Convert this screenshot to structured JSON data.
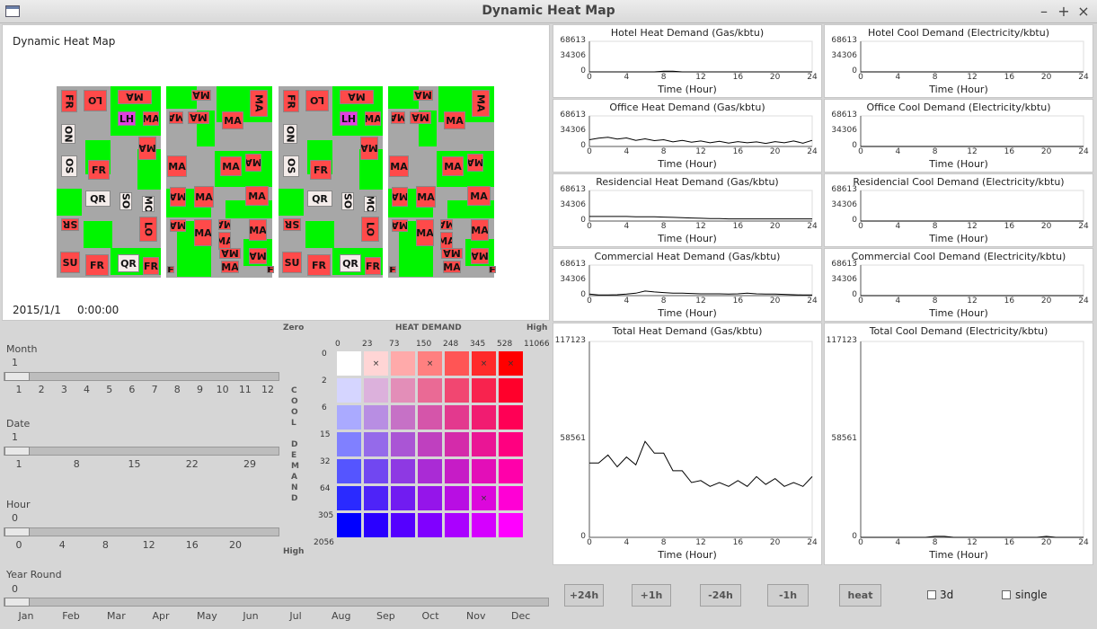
{
  "window": {
    "title": "Dynamic Heat Map"
  },
  "map": {
    "title": "Dynamic Heat Map",
    "date": "2015/1/1",
    "time": "0:00:00"
  },
  "colors": {
    "green": "#00f500",
    "block": "#a7a7a7",
    "building": "#ff4a4a",
    "purple": "#e040e0"
  },
  "sliders": {
    "month": {
      "label": "Month",
      "value": "1",
      "ticks": [
        "1",
        "2",
        "3",
        "4",
        "5",
        "6",
        "7",
        "8",
        "9",
        "10",
        "11",
        "12"
      ]
    },
    "date": {
      "label": "Date",
      "value": "1",
      "ticks": [
        "1",
        "8",
        "15",
        "22",
        "29"
      ]
    },
    "hour": {
      "label": "Hour",
      "value": "0",
      "ticks": [
        "0",
        "4",
        "8",
        "12",
        "16",
        "20"
      ]
    },
    "year": {
      "label": "Year Round",
      "value": "0",
      "ticks": [
        "Jan",
        "Feb",
        "Mar",
        "Apr",
        "May",
        "Jun",
        "Jul",
        "Aug",
        "Sep",
        "Oct",
        "Nov",
        "Dec"
      ]
    }
  },
  "legend": {
    "zero": "Zero",
    "heat_demand": "HEAT DEMAND",
    "high_top": "High",
    "high_bottom": "High",
    "cool_demand": [
      "C",
      "O",
      "O",
      "L",
      "",
      "D",
      "E",
      "M",
      "A",
      "N",
      "D"
    ],
    "heat_ticks": [
      "0",
      "23",
      "73",
      "150",
      "248",
      "345",
      "528",
      "11066"
    ],
    "cool_ticks": [
      "0",
      "2",
      "6",
      "15",
      "32",
      "64",
      "305",
      "2056"
    ]
  },
  "charts": {
    "small": [
      {
        "title": "Hotel Heat Demand (Gas/kbtu)",
        "y": [
          "68613",
          "34306",
          "0"
        ],
        "series": [
          0,
          0,
          0,
          0,
          0,
          0,
          0,
          0,
          0.02,
          0.02,
          0,
          0,
          0,
          0,
          0,
          0,
          0,
          0,
          0,
          0,
          0,
          0,
          0,
          0,
          0
        ]
      },
      {
        "title": "Hotel Cool Demand (Electricity/kbtu)",
        "y": [
          "68613",
          "34306",
          "0"
        ],
        "series": [
          0,
          0,
          0,
          0,
          0,
          0,
          0,
          0,
          0,
          0,
          0,
          0,
          0,
          0,
          0,
          0,
          0,
          0,
          0,
          0,
          0,
          0,
          0,
          0,
          0
        ]
      },
      {
        "title": "Office Heat Demand (Gas/kbtu)",
        "y": [
          "68613",
          "34306",
          "0"
        ],
        "series": [
          0.22,
          0.27,
          0.3,
          0.24,
          0.28,
          0.2,
          0.25,
          0.19,
          0.22,
          0.15,
          0.2,
          0.14,
          0.18,
          0.12,
          0.17,
          0.11,
          0.16,
          0.12,
          0.15,
          0.1,
          0.16,
          0.12,
          0.18,
          0.11,
          0.2
        ]
      },
      {
        "title": "Office Cool Demand (Electricity/kbtu)",
        "y": [
          "68613",
          "34306",
          "0"
        ],
        "series": [
          0,
          0,
          0,
          0,
          0,
          0,
          0,
          0,
          0,
          0,
          0,
          0,
          0,
          0,
          0,
          0,
          0,
          0,
          0,
          0,
          0,
          0,
          0,
          0,
          0
        ]
      },
      {
        "title": "Residencial Heat Demand (Gas/kbtu)",
        "y": [
          "68613",
          "34306",
          "0"
        ],
        "series": [
          0.15,
          0.15,
          0.15,
          0.15,
          0.15,
          0.14,
          0.14,
          0.14,
          0.13,
          0.12,
          0.11,
          0.1,
          0.09,
          0.08,
          0.08,
          0.07,
          0.07,
          0.07,
          0.07,
          0.07,
          0.07,
          0.07,
          0.07,
          0.07,
          0.07
        ]
      },
      {
        "title": "Residencial Cool Demand (Electricity/kbtu)",
        "y": [
          "68613",
          "34306",
          "0"
        ],
        "series": [
          0,
          0,
          0,
          0,
          0,
          0,
          0,
          0,
          0,
          0,
          0,
          0,
          0,
          0,
          0,
          0,
          0,
          0,
          0,
          0,
          0,
          0,
          0,
          0,
          0
        ]
      },
      {
        "title": "Commercial Heat Demand (Gas/kbtu)",
        "y": [
          "68613",
          "34306",
          "0"
        ],
        "series": [
          0.05,
          0.02,
          0.02,
          0.03,
          0.05,
          0.08,
          0.15,
          0.12,
          0.1,
          0.08,
          0.08,
          0.07,
          0.06,
          0.06,
          0.06,
          0.05,
          0.06,
          0.08,
          0.06,
          0.05,
          0.05,
          0.04,
          0.03,
          0.02,
          0.02
        ]
      },
      {
        "title": "Commercial Cool Demand (Electricity/kbtu)",
        "y": [
          "68613",
          "34306",
          "0"
        ],
        "series": [
          0,
          0,
          0,
          0,
          0,
          0,
          0,
          0,
          0,
          0,
          0,
          0,
          0,
          0,
          0,
          0,
          0,
          0,
          0,
          0,
          0,
          0,
          0,
          0,
          0
        ]
      }
    ],
    "large": [
      {
        "title": "Total Heat Demand (Gas/kbtu)",
        "y": [
          "117123",
          "58561",
          "0"
        ],
        "series": [
          0.38,
          0.38,
          0.42,
          0.36,
          0.41,
          0.37,
          0.49,
          0.43,
          0.43,
          0.34,
          0.34,
          0.28,
          0.29,
          0.26,
          0.28,
          0.26,
          0.29,
          0.26,
          0.31,
          0.27,
          0.3,
          0.26,
          0.28,
          0.26,
          0.31
        ]
      },
      {
        "title": "Total Cool Demand (Electricity/kbtu)",
        "y": [
          "117123",
          "58561",
          "0"
        ],
        "series": [
          0,
          0,
          0,
          0,
          0,
          0,
          0,
          0,
          0.005,
          0.005,
          0,
          0,
          0,
          0,
          0,
          0,
          0,
          0,
          0,
          0,
          0.005,
          0,
          0,
          0,
          0
        ]
      }
    ],
    "x_ticks": [
      "0",
      "4",
      "8",
      "12",
      "16",
      "20",
      "24"
    ],
    "x_label": "Time (Hour)"
  },
  "buttons": {
    "plus24": "+24h",
    "plus1": "+1h",
    "minus24": "-24h",
    "minus1": "-1h",
    "heat": "heat"
  },
  "checkboxes": {
    "d3": "3d",
    "single": "single"
  }
}
